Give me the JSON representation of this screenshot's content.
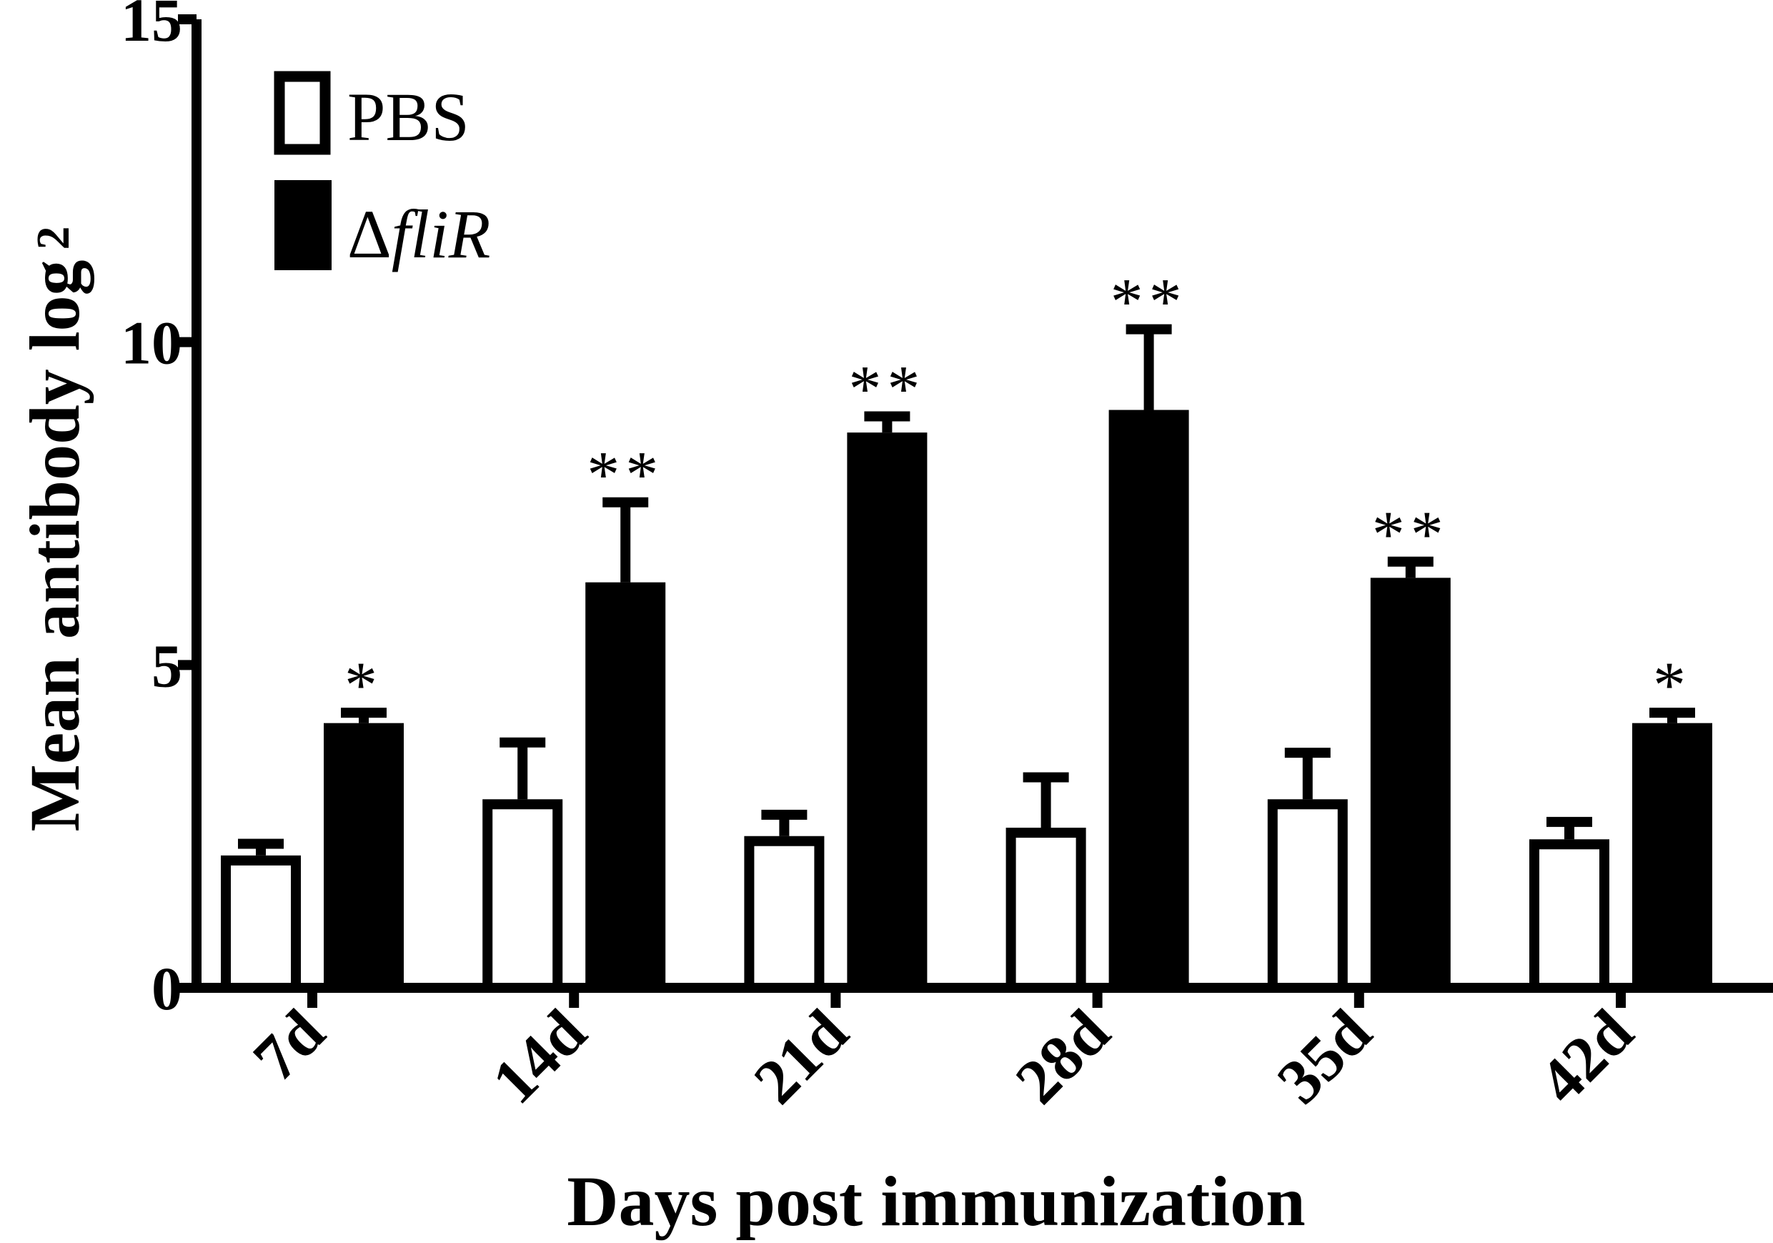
{
  "chart_data": {
    "type": "bar",
    "title": "",
    "xlabel": "Days post immunization",
    "ylabel": "Mean antibody log",
    "ylabel_subscript": "2",
    "ylim": [
      0,
      15
    ],
    "yticks": [
      0,
      5,
      10,
      15
    ],
    "categories": [
      "7d",
      "14d",
      "21d",
      "28d",
      "35d",
      "42d"
    ],
    "legend_placement": "top-left",
    "series": [
      {
        "name": "PBS",
        "fill": "#ffffff",
        "stroke": "#000000",
        "values": [
          2.05,
          2.92,
          2.35,
          2.48,
          2.92,
          2.3
        ],
        "errors": [
          0.18,
          0.88,
          0.33,
          0.78,
          0.72,
          0.27
        ]
      },
      {
        "name": "ΔfliR",
        "name_prefix": "Δ",
        "name_italic": "fliR",
        "fill": "#000000",
        "stroke": "#000000",
        "values": [
          4.1,
          6.28,
          8.6,
          8.95,
          6.35,
          4.1
        ],
        "errors": [
          0.16,
          1.24,
          0.25,
          1.25,
          0.25,
          0.16
        ]
      }
    ],
    "annotations": [
      "*",
      "**",
      "**",
      "**",
      "**",
      "*"
    ],
    "grid": false
  }
}
